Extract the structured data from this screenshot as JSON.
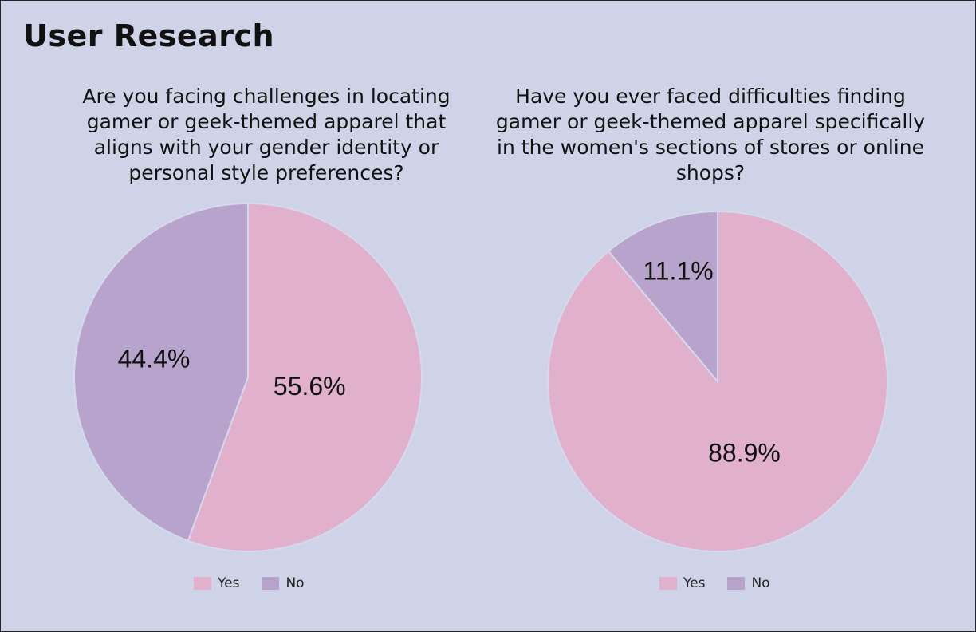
{
  "page": {
    "title": "User Research"
  },
  "colors": {
    "yes": "#e0b0cc",
    "no": "#b7a3cb",
    "background": "#cfd3e8",
    "slice_border": "#d6d9ee"
  },
  "chart_data": [
    {
      "type": "pie",
      "title": "Are you facing challenges in locating gamer or geek-themed apparel that aligns with your gender identity or personal style preferences?",
      "categories": [
        "Yes",
        "No"
      ],
      "values": [
        55.6,
        44.4
      ],
      "labels": [
        "55.6%",
        "44.4%"
      ],
      "legend": {
        "placement": "bottom",
        "entries": [
          "Yes",
          "No"
        ]
      }
    },
    {
      "type": "pie",
      "title": "Have you ever faced difficulties finding gamer or geek-themed apparel specifically in the women's sections of stores or online shops?",
      "categories": [
        "Yes",
        "No"
      ],
      "values": [
        88.9,
        11.1
      ],
      "labels": [
        "88.9%",
        "11.1%"
      ],
      "legend": {
        "placement": "bottom",
        "entries": [
          "Yes",
          "No"
        ]
      }
    }
  ]
}
